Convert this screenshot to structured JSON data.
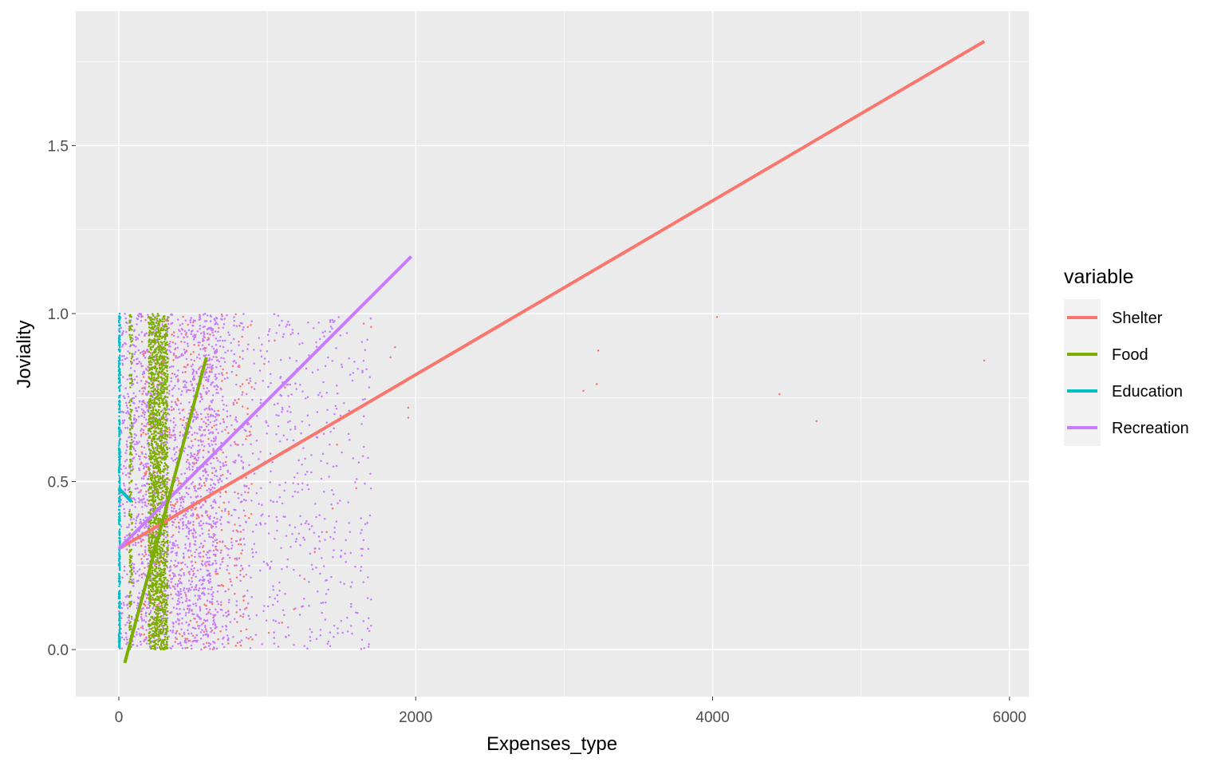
{
  "chart_data": {
    "type": "scatter",
    "title": "",
    "xlabel": "Expenses_type",
    "ylabel": "Joviality",
    "xlim": [
      -290,
      6130
    ],
    "ylim": [
      -0.14,
      1.9
    ],
    "x_ticks": [
      0,
      2000,
      4000,
      6000
    ],
    "x_tick_labels": [
      "0",
      "2000",
      "4000",
      "6000"
    ],
    "y_ticks": [
      0.0,
      0.5,
      1.0,
      1.5
    ],
    "y_tick_labels": [
      "0.0",
      "0.5",
      "1.0",
      "1.5"
    ],
    "grid": true,
    "legend": {
      "title": "variable",
      "position": "right"
    },
    "series": [
      {
        "name": "Shelter",
        "color": "#F8766D",
        "fit_line": [
          [
            0,
            0.3
          ],
          [
            5830,
            1.81
          ]
        ],
        "points": [
          [
            4030,
            0.99
          ],
          [
            3230,
            0.89
          ],
          [
            3130,
            0.77
          ],
          [
            3220,
            0.79
          ],
          [
            4450,
            0.76
          ],
          [
            4700,
            0.68
          ],
          [
            5830,
            0.86
          ],
          [
            1950,
            0.69
          ],
          [
            1950,
            0.72
          ],
          [
            1860,
            0.9
          ],
          [
            1830,
            0.87
          ],
          [
            1700,
            0.96
          ],
          [
            1650,
            0.97
          ],
          [
            1600,
            0.48
          ],
          [
            1470,
            0.61
          ],
          [
            1440,
            0.42
          ],
          [
            1400,
            0.35
          ],
          [
            1320,
            0.29
          ],
          [
            1250,
            0.21
          ],
          [
            1180,
            0.12
          ],
          [
            1100,
            0.08
          ],
          [
            1010,
            0.05
          ],
          [
            900,
            0.03
          ],
          [
            860,
            0.06
          ],
          [
            820,
            0.1
          ],
          [
            800,
            0.02
          ],
          [
            780,
            0.25
          ],
          [
            760,
            0.33
          ],
          [
            740,
            0.41
          ],
          [
            720,
            0.47
          ],
          [
            700,
            0.52
          ],
          [
            680,
            0.19
          ],
          [
            660,
            0.57
          ],
          [
            640,
            0.62
          ],
          [
            620,
            0.14
          ],
          [
            600,
            0.7
          ],
          [
            1050,
            0.92
          ],
          [
            980,
            0.85
          ],
          [
            1120,
            0.78
          ]
        ]
      },
      {
        "name": "Food",
        "color": "#7CAE00",
        "fit_line": [
          [
            40,
            -0.04
          ],
          [
            590,
            0.87
          ]
        ],
        "band_x": [
          [
            200,
            330
          ],
          [
            70,
            90
          ]
        ],
        "points": []
      },
      {
        "name": "Education",
        "color": "#00BFC4",
        "fit_line": [
          [
            0,
            0.48
          ],
          [
            85,
            0.44
          ]
        ],
        "band_x": [
          [
            0,
            8
          ]
        ],
        "points": []
      },
      {
        "name": "Recreation",
        "color": "#C77CFF",
        "fit_line": [
          [
            0,
            0.3
          ],
          [
            1970,
            1.17
          ]
        ],
        "band_x": [
          [
            0,
            1700
          ]
        ],
        "points": []
      }
    ]
  }
}
